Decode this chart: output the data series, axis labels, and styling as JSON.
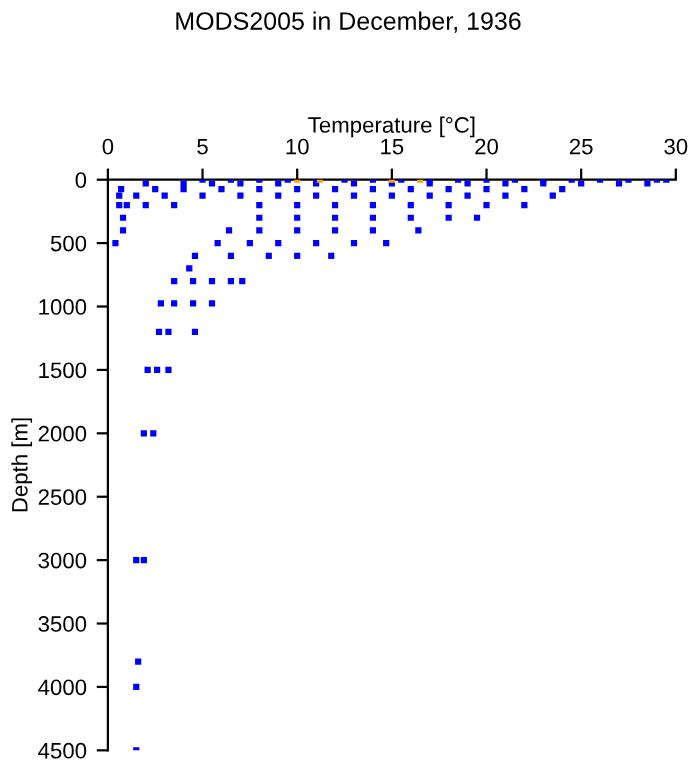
{
  "chart_data": {
    "type": "scatter",
    "title": "MODS2005 in December, 1936",
    "xlabel": "Temperature [°C]",
    "ylabel": "Depth [m]",
    "xlim": [
      0,
      30
    ],
    "xticks": [
      0,
      5,
      10,
      15,
      20,
      25,
      30
    ],
    "ylim": [
      4500,
      0
    ],
    "yticks": [
      0,
      500,
      1000,
      1500,
      2000,
      2500,
      3000,
      3500,
      4000,
      4500
    ],
    "grid": false,
    "legend": false,
    "marker": "square",
    "series": [
      {
        "color": "#0000ff",
        "x": [
          5,
          6.5,
          8,
          9.5,
          11,
          12.5,
          14,
          15.5,
          17,
          18.5,
          20,
          21.5,
          23,
          24.5,
          26,
          27.5,
          29,
          29.5,
          2,
          4,
          5.5,
          7,
          9,
          11,
          13,
          15,
          17,
          19,
          21,
          23,
          25,
          27,
          28.5,
          0.7,
          2.5,
          4,
          6,
          8,
          10,
          12,
          14,
          16,
          18,
          20,
          22,
          24,
          0.6,
          1.5,
          3,
          5,
          7,
          9,
          11,
          13,
          15,
          17,
          19,
          21,
          23.5,
          0.6,
          1,
          2,
          3.5,
          8,
          10,
          12,
          14,
          16,
          18,
          20,
          22,
          0.8,
          8,
          10,
          12,
          14,
          16,
          18,
          19.5,
          0.8,
          6.4,
          8,
          10,
          12,
          14,
          16.4,
          0.4,
          5.8,
          7.5,
          9,
          11,
          13,
          14.7,
          4.6,
          6.5,
          8.5,
          10,
          11.8,
          4.3,
          3.5,
          4.5,
          5.5,
          6.5,
          7.1,
          2.8,
          3.5,
          4.5,
          5.5,
          2.7,
          3.2,
          4.6,
          2.1,
          2.6,
          3.2,
          1.9,
          2.4,
          1.5,
          1.9,
          1.6,
          1.5,
          1.5
        ],
        "values": [
          0,
          0,
          0,
          0,
          0,
          0,
          0,
          0,
          0,
          0,
          0,
          0,
          0,
          0,
          0,
          0,
          0,
          0,
          30,
          30,
          30,
          30,
          30,
          30,
          30,
          30,
          30,
          30,
          30,
          30,
          30,
          30,
          30,
          75,
          75,
          75,
          75,
          75,
          75,
          75,
          75,
          75,
          75,
          75,
          75,
          75,
          125,
          125,
          125,
          125,
          125,
          125,
          125,
          125,
          125,
          125,
          125,
          125,
          125,
          200,
          200,
          200,
          200,
          200,
          200,
          200,
          200,
          200,
          200,
          200,
          200,
          300,
          300,
          300,
          300,
          300,
          300,
          300,
          300,
          400,
          400,
          400,
          400,
          400,
          400,
          400,
          500,
          500,
          500,
          500,
          500,
          500,
          500,
          600,
          600,
          600,
          600,
          600,
          700,
          800,
          800,
          800,
          800,
          800,
          975,
          975,
          975,
          975,
          1200,
          1200,
          1200,
          1500,
          1500,
          1500,
          2000,
          2000,
          3000,
          3000,
          3800,
          4000,
          4500
        ]
      },
      {
        "color": "#ffa500",
        "x": [
          10,
          11.2,
          15,
          16.5
        ],
        "values": [
          0,
          0,
          0,
          0
        ]
      }
    ]
  }
}
